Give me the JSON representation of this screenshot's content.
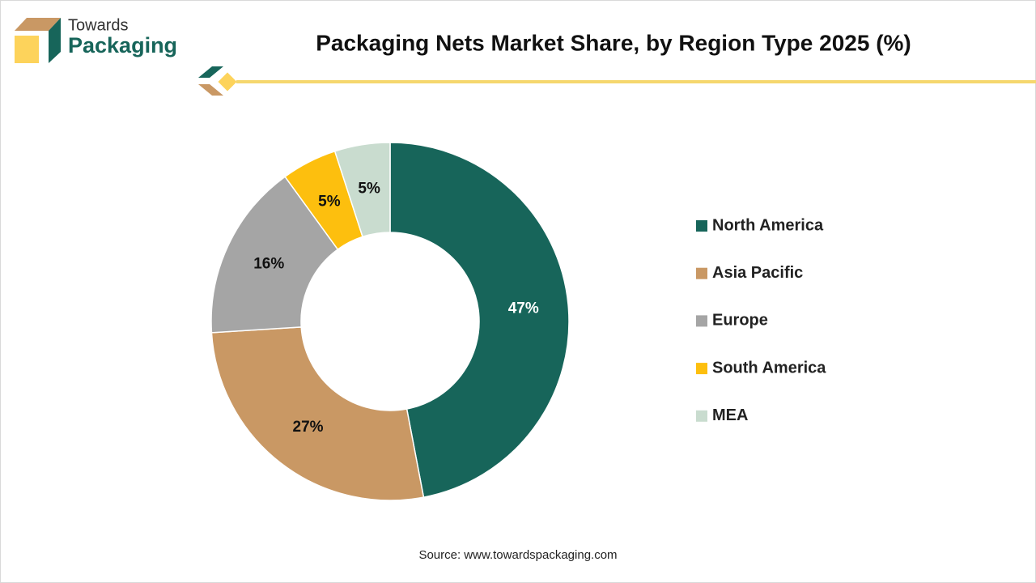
{
  "brand": {
    "line1": "Towards",
    "line2": "Packaging"
  },
  "chart_data": {
    "type": "donut",
    "title": "Packaging Nets Market Share, by Region Type 2025 (%)",
    "categories": [
      "North America",
      "Asia Pacific",
      "Europe",
      "South America",
      "MEA"
    ],
    "values": [
      47,
      27,
      16,
      5,
      5
    ],
    "value_labels": [
      "47%",
      "27%",
      "16%",
      "5%",
      "5%"
    ],
    "colors": [
      "#17655a",
      "#c99864",
      "#a5a5a5",
      "#fdbf0e",
      "#c9dccf"
    ],
    "legend": "right",
    "source": "Source: www.towardspackaging.com"
  }
}
